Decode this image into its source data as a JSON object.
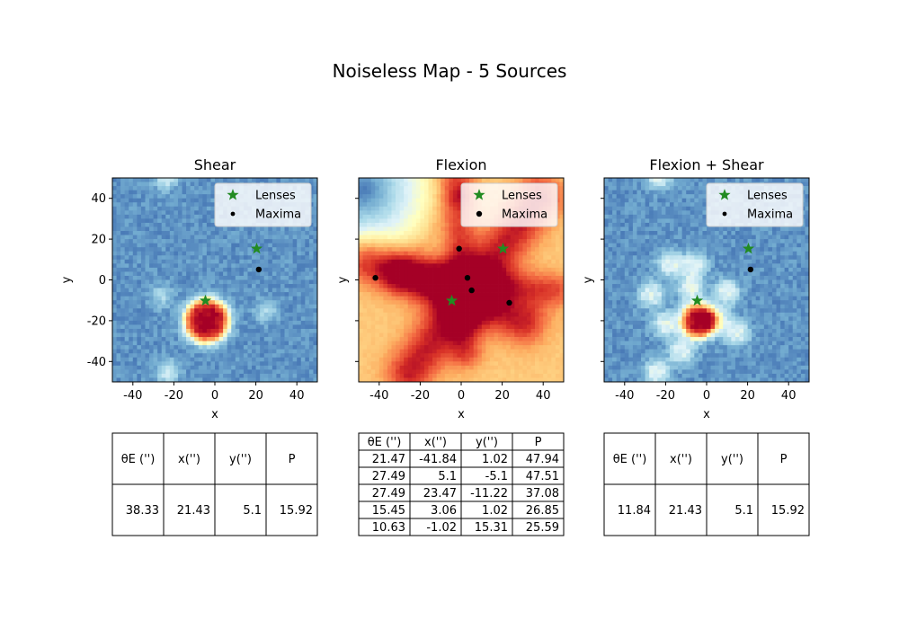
{
  "figure_title": "Noiseless Map - 5 Sources",
  "legend": {
    "lenses_label": "Lenses",
    "maxima_label": "Maxima"
  },
  "colors": {
    "lens_marker": "#228b22",
    "maxima_marker": "#000000"
  },
  "chart_data": [
    {
      "type": "heatmap",
      "title": "Shear",
      "xlabel": "x",
      "ylabel": "y",
      "xlim": [
        -50,
        50
      ],
      "ylim": [
        -50,
        50
      ],
      "xticks": [
        -40,
        -20,
        0,
        20,
        40
      ],
      "yticks": [
        -40,
        -20,
        0,
        20,
        40
      ],
      "colormap": "RdYlBu_r",
      "lenses": [
        {
          "x": 20.4,
          "y": 15.3
        },
        {
          "x": -4.6,
          "y": -10.2
        }
      ],
      "maxima": [
        {
          "x": 21.43,
          "y": 5.1
        }
      ],
      "legend_position": "upper-right",
      "table": {
        "headers": [
          "θE ('')",
          "x('')",
          "y('')",
          "P"
        ],
        "rows": [
          [
            "38.33",
            "21.43",
            "5.1",
            "15.92"
          ]
        ]
      }
    },
    {
      "type": "heatmap",
      "title": "Flexion",
      "xlabel": "x",
      "ylabel": "y",
      "xlim": [
        -50,
        50
      ],
      "ylim": [
        -50,
        50
      ],
      "xticks": [
        -40,
        -20,
        0,
        20,
        40
      ],
      "yticks": [
        -40,
        -20,
        0,
        20,
        40
      ],
      "colormap": "RdYlBu_r",
      "lenses": [
        {
          "x": 20.4,
          "y": 15.3
        },
        {
          "x": -4.6,
          "y": -10.2
        }
      ],
      "maxima": [
        {
          "x": -41.84,
          "y": 1.02
        },
        {
          "x": 5.1,
          "y": -5.1
        },
        {
          "x": 23.47,
          "y": -11.22
        },
        {
          "x": 3.06,
          "y": 1.02
        },
        {
          "x": -1.02,
          "y": 15.31
        }
      ],
      "legend_position": "upper-right",
      "table": {
        "headers": [
          "θE ('')",
          "x('')",
          "y('')",
          "P"
        ],
        "rows": [
          [
            "21.47",
            "-41.84",
            "1.02",
            "47.94"
          ],
          [
            "27.49",
            "5.1",
            "-5.1",
            "47.51"
          ],
          [
            "27.49",
            "23.47",
            "-11.22",
            "37.08"
          ],
          [
            "15.45",
            "3.06",
            "1.02",
            "26.85"
          ],
          [
            "10.63",
            "-1.02",
            "15.31",
            "25.59"
          ]
        ]
      }
    },
    {
      "type": "heatmap",
      "title": "Flexion + Shear",
      "xlabel": "x",
      "ylabel": "y",
      "xlim": [
        -50,
        50
      ],
      "ylim": [
        -50,
        50
      ],
      "xticks": [
        -40,
        -20,
        0,
        20,
        40
      ],
      "yticks": [
        -40,
        -20,
        0,
        20,
        40
      ],
      "colormap": "RdYlBu_r",
      "lenses": [
        {
          "x": 20.4,
          "y": 15.3
        },
        {
          "x": -4.6,
          "y": -10.2
        }
      ],
      "maxima": [
        {
          "x": 21.43,
          "y": 5.1
        }
      ],
      "legend_position": "upper-right",
      "table": {
        "headers": [
          "θE ('')",
          "x('')",
          "y('')",
          "P"
        ],
        "rows": [
          [
            "11.84",
            "21.43",
            "5.1",
            "15.92"
          ]
        ]
      }
    }
  ]
}
